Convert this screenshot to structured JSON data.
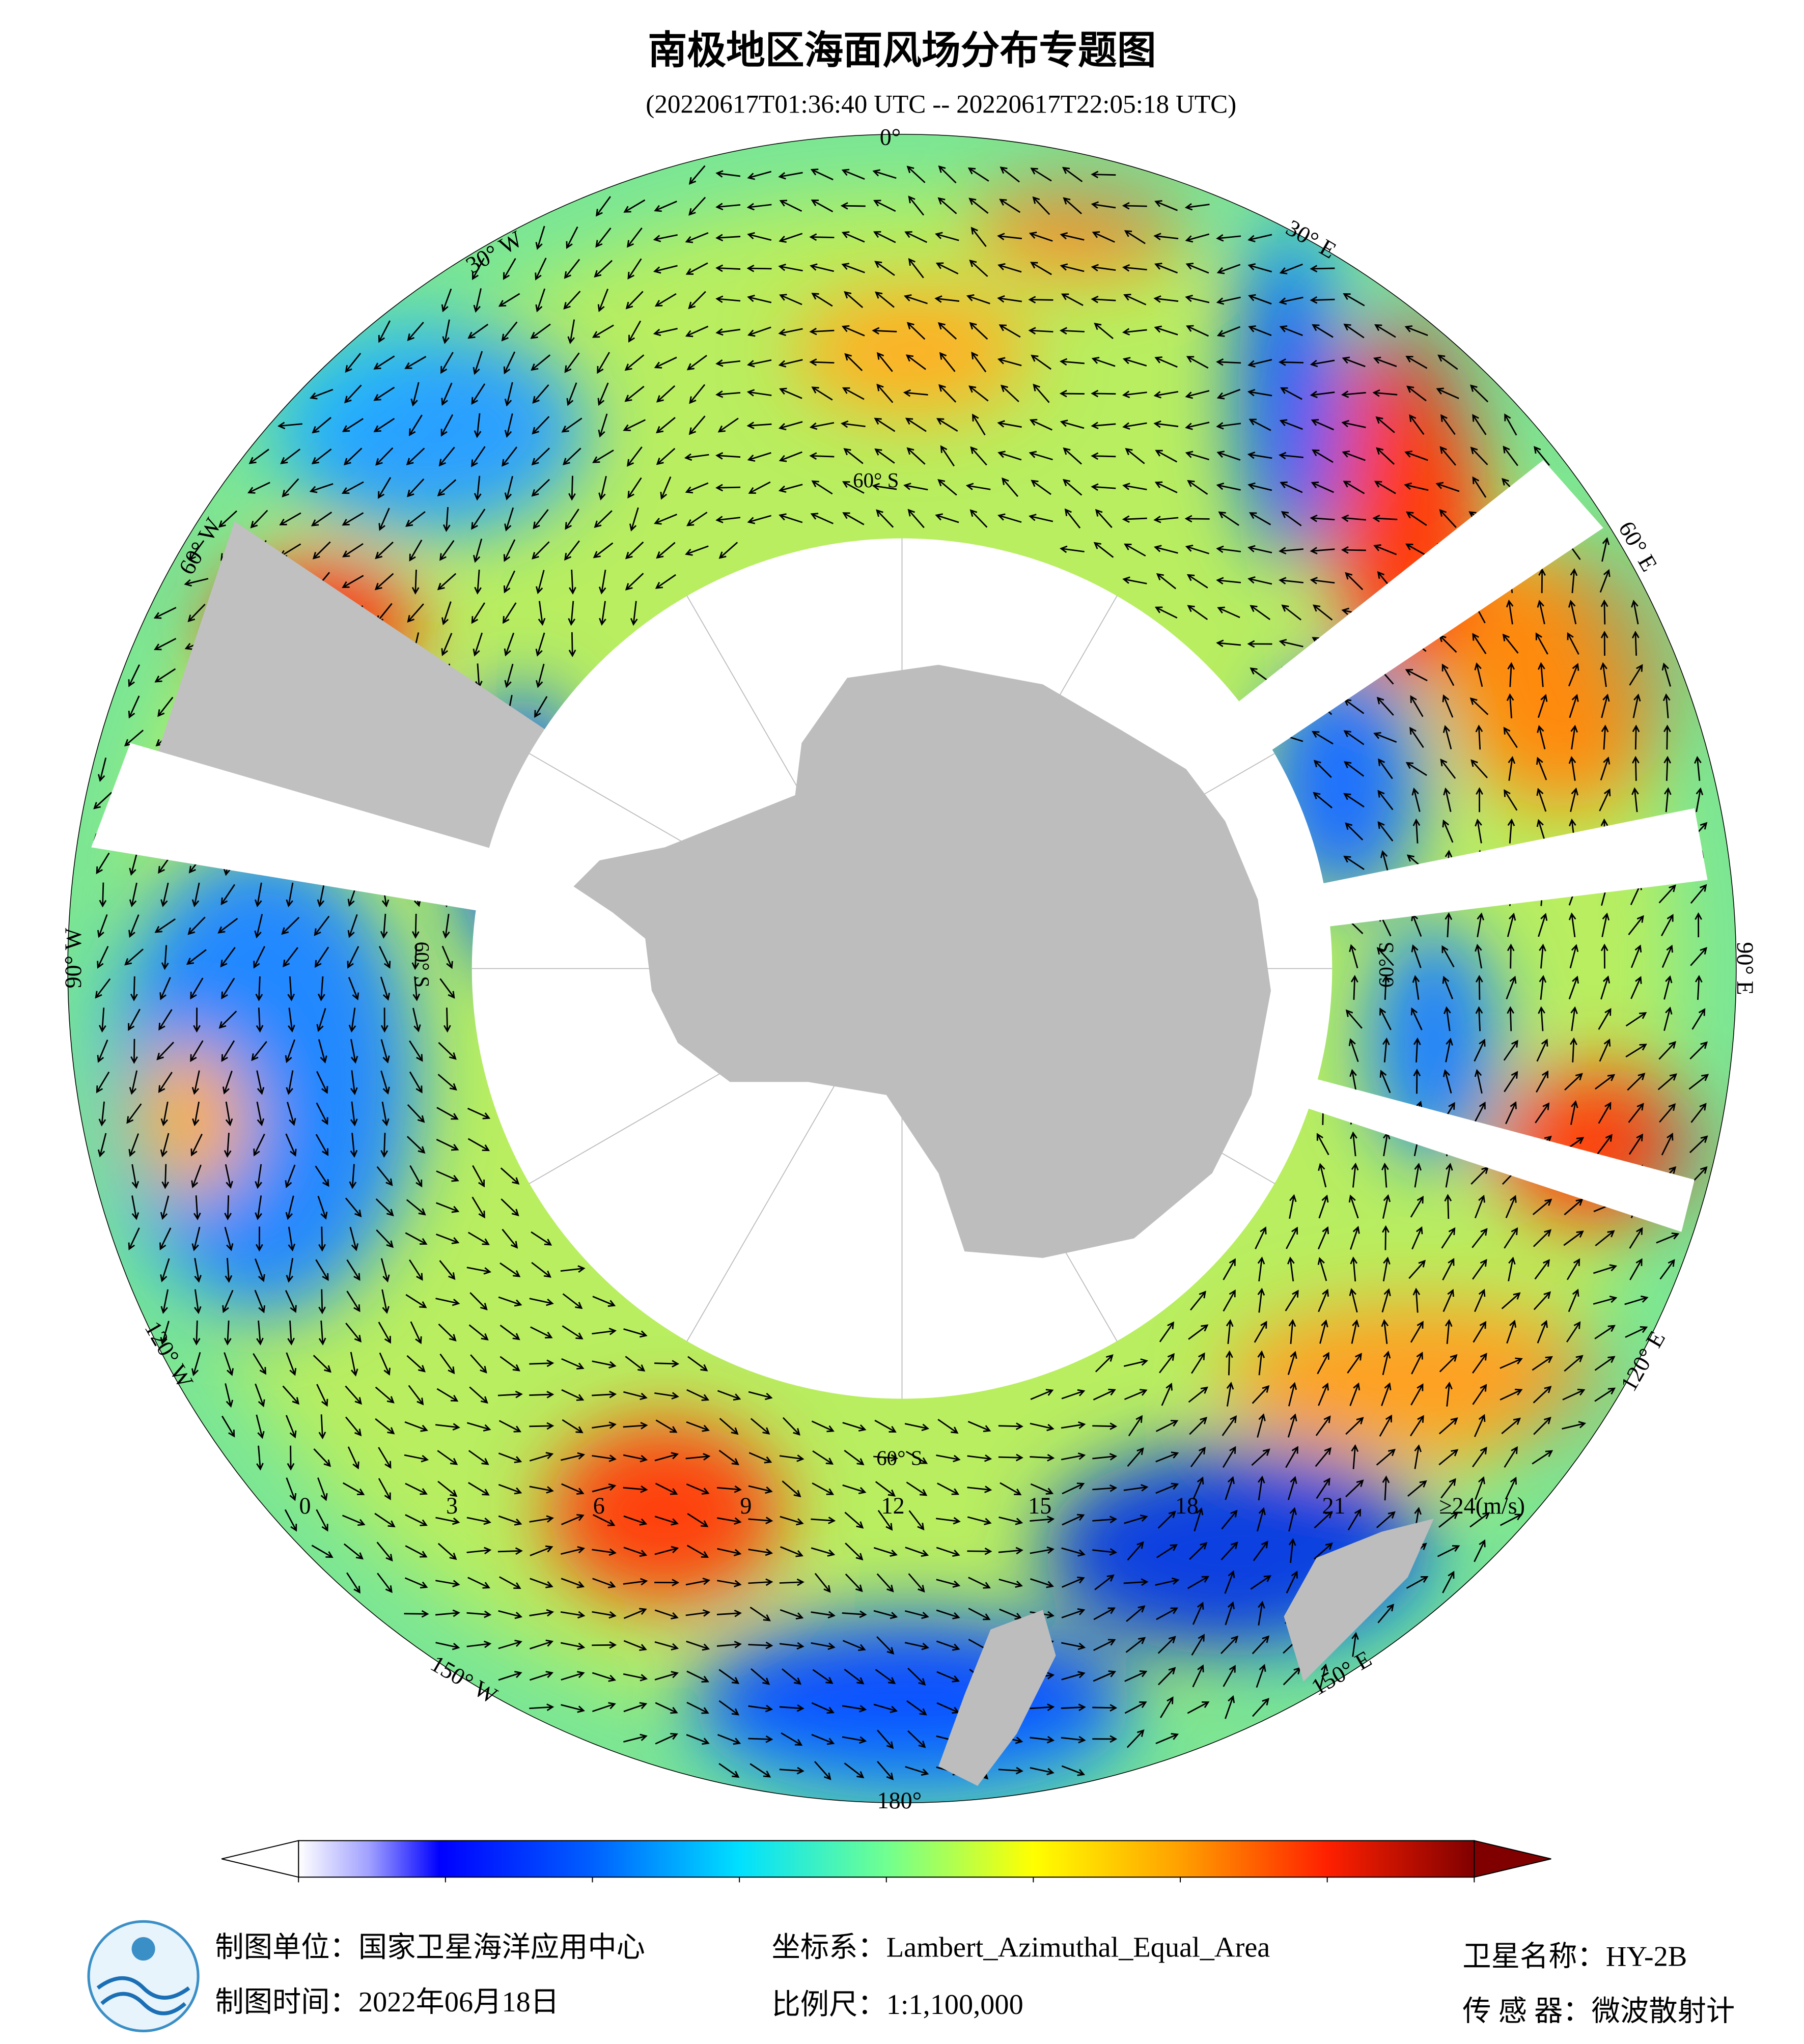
{
  "title": "南极地区海面风场分布专题图",
  "subtitle": "(20220617T01:36:40 UTC -- 20220617T22:05:18 UTC)",
  "map": {
    "lon_labels": [
      "0°",
      "30° E",
      "60° E",
      "90° E",
      "120° E",
      "150° E",
      "180°",
      "150° W",
      "120° W",
      "90° W",
      "60° W",
      "30° W"
    ],
    "lat_labels": [
      "60° S",
      "60° S",
      "60° S",
      "60° S"
    ]
  },
  "colorbar": {
    "vlim": [
      0,
      24
    ],
    "ticks": [
      0,
      3,
      6,
      9,
      12,
      15,
      18,
      21,
      {
        "value": 24,
        "label": "≥24(m/s)"
      }
    ]
  },
  "footer": {
    "unit": "制图单位：国家卫星海洋应用中心",
    "date": "制图时间：2022年06月18日",
    "crs": "坐标系：Lambert_Azimuthal_Equal_Area",
    "scale": "比例尺：1:1,100,000",
    "satellite": "卫星名称：HY-2B",
    "sensor": "传 感 器：微波散射计"
  }
}
